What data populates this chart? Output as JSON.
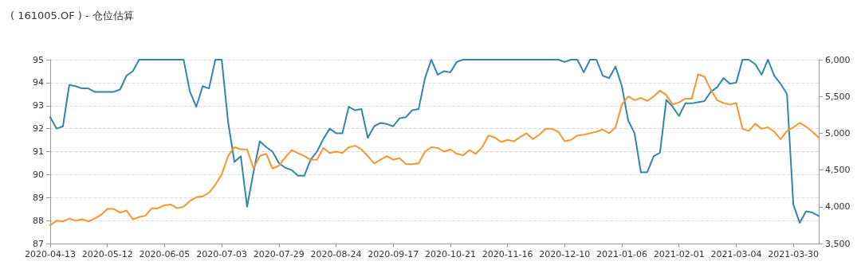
{
  "chart_data": {
    "type": "line",
    "title": "( 161005.OF ) - 仓位估算",
    "categories": [
      "2020-04-13",
      null,
      null,
      null,
      null,
      null,
      null,
      null,
      null,
      "2020-05-12",
      null,
      null,
      null,
      null,
      null,
      null,
      null,
      null,
      "2020-06-05",
      null,
      null,
      null,
      null,
      null,
      null,
      null,
      null,
      "2020-07-03",
      null,
      null,
      null,
      null,
      null,
      null,
      null,
      null,
      "2020-07-29",
      null,
      null,
      null,
      null,
      null,
      null,
      null,
      null,
      "2020-08-24",
      null,
      null,
      null,
      null,
      null,
      null,
      null,
      null,
      "2020-09-17",
      null,
      null,
      null,
      null,
      null,
      null,
      null,
      null,
      "2020-10-21",
      null,
      null,
      null,
      null,
      null,
      null,
      null,
      null,
      "2020-11-16",
      null,
      null,
      null,
      null,
      null,
      null,
      null,
      null,
      "2020-12-10",
      null,
      null,
      null,
      null,
      null,
      null,
      null,
      null,
      "2021-01-06",
      null,
      null,
      null,
      null,
      null,
      null,
      null,
      null,
      "2021-02-01",
      null,
      null,
      null,
      null,
      null,
      null,
      null,
      null,
      "2021-03-04",
      null,
      null,
      null,
      null,
      null,
      null,
      null,
      null,
      "2021-03-30",
      null,
      null,
      null,
      null
    ],
    "series": [
      {
        "color": "#3385ad",
        "values": [
          92.5,
          92.0,
          92.1,
          93.9,
          93.85,
          93.75,
          93.75,
          93.6,
          93.6,
          93.6,
          93.6,
          93.7,
          94.3,
          94.5,
          95.0,
          95.0,
          95.0,
          95.0,
          95.0,
          95.0,
          95.0,
          95.0,
          93.6,
          92.95,
          93.85,
          93.75,
          95.0,
          95.0,
          92.3,
          90.55,
          90.8,
          88.6,
          90.1,
          91.45,
          91.2,
          91.0,
          90.5,
          90.3,
          90.2,
          89.95,
          89.95,
          90.65,
          91.0,
          91.55,
          92.0,
          91.8,
          91.8,
          92.95,
          92.8,
          92.85,
          91.6,
          92.1,
          92.25,
          92.2,
          92.1,
          92.45,
          92.5,
          92.8,
          92.85,
          94.2,
          95.0,
          94.35,
          94.5,
          94.45,
          94.9,
          95.0,
          95.0,
          95.0,
          95.0,
          95.0,
          95.0,
          95.0,
          95.0,
          95.0,
          95.0,
          95.0,
          95.0,
          95.0,
          95.0,
          95.0,
          95.0,
          94.9,
          95.0,
          95.0,
          94.45,
          95.0,
          95.0,
          94.3,
          94.2,
          94.7,
          93.85,
          92.35,
          91.8,
          90.1,
          90.1,
          90.8,
          90.95,
          93.25,
          92.95,
          92.55,
          93.1,
          93.1,
          93.15,
          93.2,
          93.6,
          93.8,
          94.2,
          93.95,
          94.0,
          95.0,
          95.0,
          94.8,
          94.35,
          95.0,
          94.3,
          93.95,
          93.5,
          88.7,
          87.9,
          88.4,
          88.35,
          88.2
        ]
      },
      {
        "color": "#f7962f",
        "axis": "y2",
        "values": [
          3750,
          3810,
          3800,
          3840,
          3810,
          3830,
          3800,
          3840,
          3890,
          3970,
          3970,
          3920,
          3950,
          3830,
          3860,
          3880,
          3980,
          3980,
          4020,
          4030,
          3980,
          4000,
          4080,
          4130,
          4140,
          4190,
          4300,
          4440,
          4690,
          4810,
          4780,
          4780,
          4520,
          4690,
          4720,
          4520,
          4560,
          4670,
          4770,
          4730,
          4690,
          4640,
          4640,
          4800,
          4730,
          4750,
          4730,
          4810,
          4830,
          4780,
          4690,
          4590,
          4640,
          4690,
          4640,
          4660,
          4580,
          4580,
          4590,
          4750,
          4810,
          4800,
          4750,
          4780,
          4720,
          4700,
          4770,
          4720,
          4810,
          4970,
          4940,
          4880,
          4910,
          4890,
          4950,
          5000,
          4920,
          4980,
          5060,
          5060,
          5020,
          4890,
          4910,
          4970,
          4980,
          5000,
          5020,
          5050,
          5000,
          5080,
          5390,
          5500,
          5450,
          5480,
          5440,
          5500,
          5580,
          5520,
          5390,
          5420,
          5470,
          5470,
          5800,
          5770,
          5590,
          5450,
          5410,
          5390,
          5410,
          5060,
          5030,
          5130,
          5060,
          5080,
          5020,
          4920,
          5030,
          5080,
          5140,
          5090,
          5020,
          4940
        ]
      }
    ],
    "ylim": [
      87,
      95
    ],
    "yticks": [
      87,
      88,
      89,
      90,
      91,
      92,
      93,
      94,
      95
    ],
    "y2lim": [
      3500,
      6000
    ],
    "y2ticks": [
      {
        "value": 3500,
        "label": "3,500"
      },
      {
        "value": 4000,
        "label": "4,000"
      },
      {
        "value": 4500,
        "label": "4,500"
      },
      {
        "value": 5000,
        "label": "5,000"
      },
      {
        "value": 5500,
        "label": "5,500"
      },
      {
        "value": 6000,
        "label": "6,000"
      }
    ],
    "grid": "y",
    "marker": "none",
    "line_style": "solid"
  }
}
